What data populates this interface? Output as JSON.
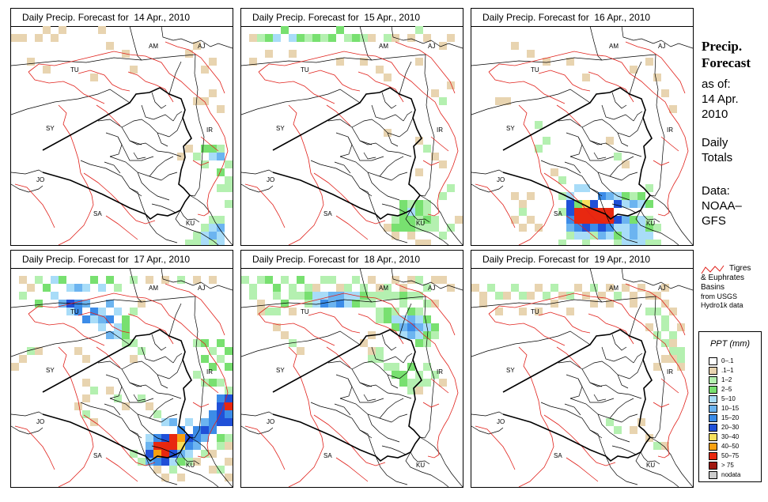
{
  "panels": [
    {
      "title": "Daily Precip. Forecast for  14 Apr., 2010"
    },
    {
      "title": "Daily Precip. Forecast for  15 Apr., 2010"
    },
    {
      "title": "Daily Precip. Forecast for  16 Apr., 2010"
    },
    {
      "title": "Daily Precip. Forecast for  17 Apr., 2010"
    },
    {
      "title": "Daily Precip. Forecast for  18 Apr., 2010"
    },
    {
      "title": "Daily Precip. Forecast for  19 Apr., 2010"
    }
  ],
  "country_labels": [
    "AM",
    "AJ",
    "TU",
    "SY",
    "IR",
    "JO",
    "SA",
    "KU"
  ],
  "side_panel": {
    "title_line1": "Precip.",
    "title_line2": "Forecast",
    "asof_line1": "as of:",
    "asof_line2": "14 Apr.",
    "asof_line3": "2010",
    "totals_line1": "Daily",
    "totals_line2": "Totals",
    "data_line1": "Data:",
    "data_line2": "NOAA–",
    "data_line3": "GFS"
  },
  "basin_legend": {
    "line1": "Tigres",
    "line2": "& Euphrates",
    "line3": "Basins",
    "line4": "from USGS",
    "line5": "Hydro1k data",
    "line_color": "#e0201a"
  },
  "ppt_legend": {
    "title": "PPT (mm)",
    "classes": [
      {
        "label": "0–.1",
        "color": "#ffffff"
      },
      {
        "label": ".1–1",
        "color": "#e8d4b0"
      },
      {
        "label": "1–2",
        "color": "#b4f0b0"
      },
      {
        "label": "2–5",
        "color": "#78e070"
      },
      {
        "label": "5–10",
        "color": "#a8dcf8"
      },
      {
        "label": "10–15",
        "color": "#6cb4f0"
      },
      {
        "label": "15–20",
        "color": "#3c8ce8"
      },
      {
        "label": "20–30",
        "color": "#2050d8"
      },
      {
        "label": "30–40",
        "color": "#f8e05c"
      },
      {
        "label": "40–50",
        "color": "#f8a010"
      },
      {
        "label": "50–75",
        "color": "#e82810"
      },
      {
        "label": "> 75",
        "color": "#a01810"
      },
      {
        "label": "nodata",
        "color": "#cccccc"
      }
    ]
  }
}
